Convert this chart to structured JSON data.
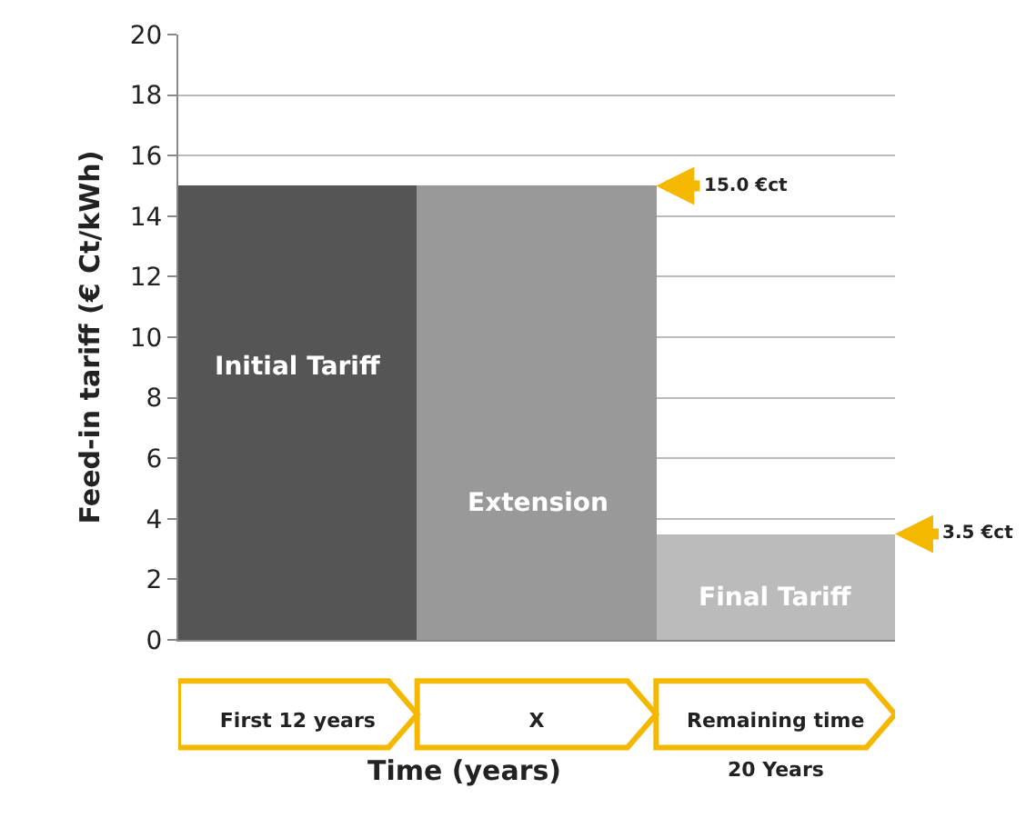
{
  "chart_data": {
    "type": "bar",
    "xlabel": "Time (years)",
    "ylabel": "Feed-in tariff (€ Ct/kWh)",
    "categories": [
      "First 12 years",
      "X",
      "Remaining time"
    ],
    "values": [
      15,
      15,
      3.5
    ],
    "colors": [
      "#555555",
      "#999999",
      "#bbbbbb"
    ],
    "ylim": [
      0,
      20
    ],
    "yticks": [
      0,
      2,
      4,
      6,
      8,
      10,
      12,
      14,
      16,
      18,
      20
    ],
    "grid": "y",
    "annotations": [
      "Initial Tariff",
      "Extension",
      "Final Tariff",
      "20 Years",
      "15.0 €ct",
      "3.5 €ct"
    ]
  }
}
